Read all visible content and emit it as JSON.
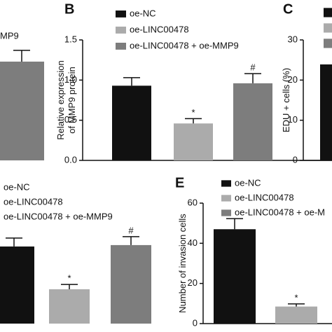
{
  "chart_data": [
    {
      "type": "bar",
      "ylim": [
        0,
        1.5
      ],
      "series": [
        {
          "name": "MP9",
          "color": "#7d7d7d",
          "values": [
            1.23
          ],
          "errors": [
            0.14
          ]
        }
      ]
    },
    {
      "type": "bar",
      "panel_label": "B",
      "y_label": [
        "Relative expression",
        "of MMP9 protein"
      ],
      "ylim": [
        0,
        1.5
      ],
      "yticks": [
        {
          "value": 0,
          "label": "0.0"
        },
        0.5,
        {
          "value": 1,
          "label": "1.0"
        },
        1.5
      ],
      "series": [
        {
          "name": "oe-NC",
          "color": "#111111",
          "values": [
            0.93
          ],
          "errors": [
            0.1
          ]
        },
        {
          "name": "oe-LINC00478",
          "color": "#ababab",
          "values": [
            0.46
          ],
          "errors": [
            0.06
          ],
          "marker_label": "*"
        },
        {
          "name": "oe-LINC00478 + oe-MMP9",
          "color": "#7d7d7d",
          "values": [
            0.96
          ],
          "errors": [
            0.12
          ],
          "marker_label": "#"
        }
      ]
    },
    {
      "type": "bar",
      "panel_label": "C",
      "y_label": [
        "EDU + cells (%)"
      ],
      "ylim": [
        0,
        30
      ],
      "yticks": [
        0,
        10,
        20,
        30
      ],
      "series": [
        {
          "color": "#111111",
          "values": [
            23.9
          ]
        },
        {
          "color": "#ababab",
          "values": [
            null
          ]
        },
        {
          "color": "#7d7d7d",
          "values": [
            null
          ]
        }
      ]
    },
    {
      "type": "bar",
      "ylim": [
        0,
        60
      ],
      "series": [
        {
          "name": "oe-NC",
          "color": "#111111",
          "values": [
            38.4
          ],
          "errors": [
            4.2
          ]
        },
        {
          "name": "oe-LINC00478",
          "color": "#ababab",
          "values": [
            17.1
          ],
          "errors": [
            2.4
          ],
          "marker_label": "*"
        },
        {
          "name": "oe-LINC00478 + oe-MMP9",
          "color": "#7d7d7d",
          "values": [
            39.1
          ],
          "errors": [
            4.2
          ],
          "marker_label": "#"
        }
      ]
    },
    {
      "type": "bar",
      "panel_label": "E",
      "y_label": [
        "Number of invasion cells"
      ],
      "ylim": [
        0,
        60
      ],
      "yticks": [
        0,
        20,
        40,
        60
      ],
      "series": [
        {
          "name": "oe-NC",
          "color": "#111111",
          "values": [
            47
          ],
          "errors": [
            5.3
          ]
        },
        {
          "name": "oe-LINC00478",
          "color": "#ababab",
          "values": [
            8.5
          ],
          "errors": [
            1.3
          ],
          "marker_label": "*"
        },
        {
          "name": "oe-LINC00478 + oe-M",
          "color": "#7d7d7d",
          "values": [
            null
          ]
        }
      ]
    }
  ]
}
